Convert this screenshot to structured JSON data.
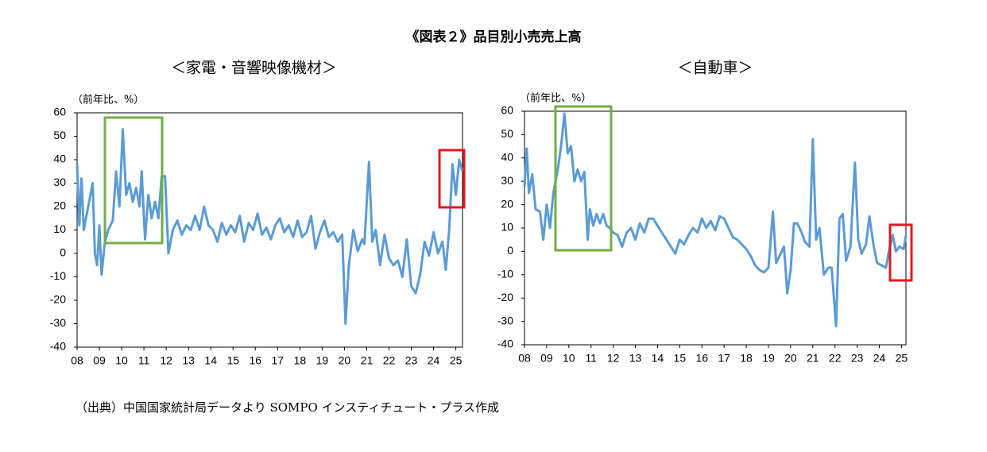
{
  "title": "《図表２》品目別小売売上高",
  "source": "（出典）中国国家統計局データより SOMPO インスティチュート・プラス作成",
  "chart_data": [
    {
      "type": "line",
      "subtitle": "＜家電・音響映像機材＞",
      "y_label": "（前年比、%）",
      "xlim": [
        2008,
        2025.3
      ],
      "ylim": [
        -40,
        60
      ],
      "yticks": [
        -40,
        -30,
        -20,
        -10,
        0,
        10,
        20,
        30,
        40,
        50,
        60
      ],
      "xticks": [
        {
          "value": 2008,
          "label": "08"
        },
        {
          "value": 2009,
          "label": "09"
        },
        {
          "value": 2010,
          "label": "10"
        },
        {
          "value": 2011,
          "label": "11"
        },
        {
          "value": 2012,
          "label": "12"
        },
        {
          "value": 2013,
          "label": "13"
        },
        {
          "value": 2014,
          "label": "14"
        },
        {
          "value": 2015,
          "label": "15"
        },
        {
          "value": 2016,
          "label": "16"
        },
        {
          "value": 2017,
          "label": "17"
        },
        {
          "value": 2018,
          "label": "18"
        },
        {
          "value": 2019,
          "label": "19"
        },
        {
          "value": 2020,
          "label": "20"
        },
        {
          "value": 2021,
          "label": "21"
        },
        {
          "value": 2022,
          "label": "22"
        },
        {
          "value": 2023,
          "label": "23"
        },
        {
          "value": 2024,
          "label": "24"
        },
        {
          "value": 2025,
          "label": "25"
        }
      ],
      "x": [
        2008.0,
        2008.1,
        2008.2,
        2008.3,
        2008.5,
        2008.7,
        2008.8,
        2008.9,
        2009.0,
        2009.1,
        2009.25,
        2009.4,
        2009.6,
        2009.75,
        2009.9,
        2010.05,
        2010.2,
        2010.35,
        2010.5,
        2010.65,
        2010.8,
        2010.9,
        2011.05,
        2011.2,
        2011.35,
        2011.5,
        2011.65,
        2011.8,
        2011.95,
        2012.1,
        2012.3,
        2012.5,
        2012.7,
        2012.9,
        2013.1,
        2013.3,
        2013.5,
        2013.7,
        2013.9,
        2014.1,
        2014.3,
        2014.5,
        2014.7,
        2014.9,
        2015.1,
        2015.3,
        2015.5,
        2015.7,
        2015.9,
        2016.1,
        2016.3,
        2016.5,
        2016.7,
        2016.9,
        2017.1,
        2017.3,
        2017.5,
        2017.7,
        2017.9,
        2018.1,
        2018.3,
        2018.5,
        2018.7,
        2018.9,
        2019.1,
        2019.3,
        2019.5,
        2019.7,
        2019.9,
        2020.05,
        2020.2,
        2020.4,
        2020.6,
        2020.8,
        2020.9,
        2021.1,
        2021.25,
        2021.4,
        2021.6,
        2021.8,
        2022.0,
        2022.2,
        2022.4,
        2022.6,
        2022.8,
        2023.0,
        2023.2,
        2023.4,
        2023.6,
        2023.8,
        2024.0,
        2024.2,
        2024.4,
        2024.55,
        2024.7,
        2024.85,
        2025.0,
        2025.15,
        2025.3
      ],
      "series": [
        {
          "color": "#5b9bd5",
          "values": [
            38,
            12,
            32,
            10,
            20,
            30,
            0,
            -5,
            12,
            -9,
            5,
            10,
            14,
            35,
            20,
            53,
            25,
            30,
            22,
            28,
            20,
            35,
            6,
            25,
            15,
            22,
            15,
            33,
            33,
            0,
            10,
            14,
            8,
            12,
            10,
            16,
            10,
            20,
            12,
            10,
            5,
            13,
            8,
            12,
            9,
            16,
            5,
            13,
            10,
            17,
            8,
            11,
            6,
            12,
            15,
            9,
            12,
            7,
            14,
            7,
            9,
            16,
            2,
            9,
            14,
            7,
            9,
            5,
            8,
            -30,
            -5,
            10,
            1,
            6,
            4,
            39,
            5,
            10,
            -5,
            8,
            -2,
            -5,
            -3,
            -10,
            6,
            -14,
            -17,
            -9,
            5,
            -1,
            9,
            0,
            5,
            -7,
            10,
            38,
            25,
            40,
            35
          ]
        }
      ]
    },
    {
      "type": "line",
      "subtitle": "＜自動車＞",
      "y_label": "（前年比、%）",
      "xlim": [
        2008,
        2025.2
      ],
      "ylim": [
        -40,
        60
      ],
      "yticks": [
        -40,
        -30,
        -20,
        -10,
        0,
        10,
        20,
        30,
        40,
        50,
        60
      ],
      "xticks": [
        {
          "value": 2008,
          "label": "08"
        },
        {
          "value": 2009,
          "label": "09"
        },
        {
          "value": 2010,
          "label": "10"
        },
        {
          "value": 2011,
          "label": "11"
        },
        {
          "value": 2012,
          "label": "12"
        },
        {
          "value": 2013,
          "label": "13"
        },
        {
          "value": 2014,
          "label": "14"
        },
        {
          "value": 2015,
          "label": "15"
        },
        {
          "value": 2016,
          "label": "16"
        },
        {
          "value": 2017,
          "label": "17"
        },
        {
          "value": 2018,
          "label": "18"
        },
        {
          "value": 2019,
          "label": "19"
        },
        {
          "value": 2020,
          "label": "20"
        },
        {
          "value": 2021,
          "label": "21"
        },
        {
          "value": 2022,
          "label": "22"
        },
        {
          "value": 2023,
          "label": "23"
        },
        {
          "value": 2024,
          "label": "24"
        },
        {
          "value": 2025,
          "label": "25"
        }
      ],
      "x": [
        2008.0,
        2008.1,
        2008.2,
        2008.35,
        2008.5,
        2008.7,
        2008.85,
        2009.0,
        2009.15,
        2009.3,
        2009.5,
        2009.65,
        2009.8,
        2009.95,
        2010.1,
        2010.25,
        2010.4,
        2010.55,
        2010.7,
        2010.85,
        2010.95,
        2011.1,
        2011.25,
        2011.4,
        2011.55,
        2011.7,
        2011.85,
        2012.0,
        2012.2,
        2012.4,
        2012.6,
        2012.8,
        2013.0,
        2013.2,
        2013.4,
        2013.6,
        2013.8,
        2014.0,
        2014.2,
        2014.4,
        2014.6,
        2014.8,
        2015.0,
        2015.2,
        2015.4,
        2015.6,
        2015.8,
        2016.0,
        2016.2,
        2016.4,
        2016.6,
        2016.8,
        2017.0,
        2017.2,
        2017.4,
        2017.6,
        2017.8,
        2018.0,
        2018.2,
        2018.4,
        2018.6,
        2018.8,
        2019.0,
        2019.2,
        2019.35,
        2019.5,
        2019.7,
        2019.85,
        2020.0,
        2020.15,
        2020.3,
        2020.5,
        2020.65,
        2020.85,
        2021.0,
        2021.15,
        2021.3,
        2021.5,
        2021.7,
        2021.85,
        2022.05,
        2022.2,
        2022.35,
        2022.5,
        2022.7,
        2022.9,
        2023.05,
        2023.2,
        2023.4,
        2023.55,
        2023.75,
        2023.9,
        2024.1,
        2024.3,
        2024.45,
        2024.6,
        2024.75,
        2024.9,
        2025.1,
        2025.2
      ],
      "series": [
        {
          "color": "#5b9bd5",
          "values": [
            28,
            44,
            25,
            33,
            18,
            17,
            5,
            20,
            10,
            25,
            35,
            45,
            59,
            42,
            45,
            30,
            35,
            30,
            34,
            5,
            18,
            11,
            16,
            12,
            16,
            11,
            10,
            8,
            7,
            2,
            8,
            10,
            5,
            12,
            8,
            14,
            14,
            11,
            8,
            5,
            2,
            -1,
            5,
            3,
            7,
            10,
            8,
            14,
            10,
            13,
            9,
            15,
            14,
            10,
            6,
            5,
            3,
            1,
            -2,
            -6,
            -8,
            -9,
            -7,
            17,
            -5,
            -2,
            2,
            -18,
            -8,
            12,
            12,
            8,
            4,
            2,
            48,
            5,
            10,
            -10,
            -7,
            -7,
            -32,
            14,
            16,
            -4,
            2,
            38,
            5,
            -1,
            3,
            15,
            2,
            -5,
            -6,
            -7,
            1,
            7,
            0,
            2,
            1,
            7
          ]
        }
      ]
    }
  ]
}
